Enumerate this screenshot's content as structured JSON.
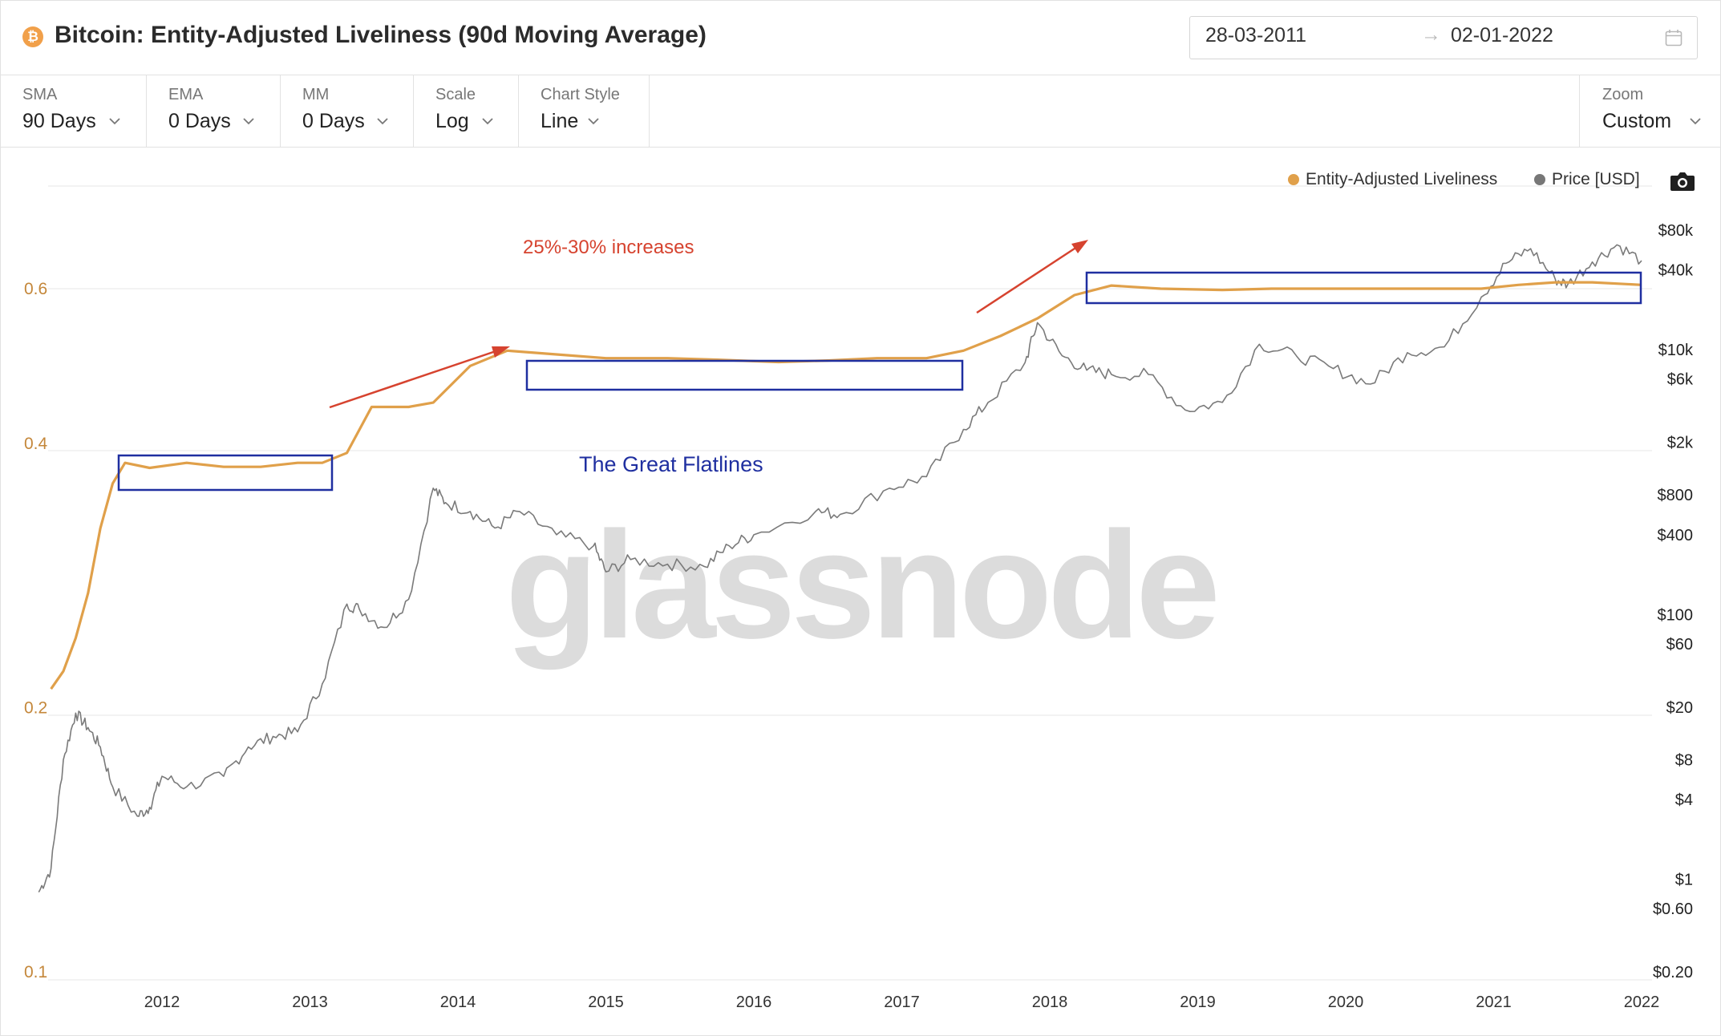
{
  "header": {
    "title": "Bitcoin: Entity-Adjusted Liveliness (90d Moving Average)",
    "coin_icon": "bitcoin-icon",
    "date_from": "28-03-2011",
    "date_arrow": "→",
    "date_to": "02-01-2022"
  },
  "toolbar": {
    "sma": {
      "label": "SMA",
      "value": "90 Days"
    },
    "ema": {
      "label": "EMA",
      "value": "0 Days"
    },
    "mm": {
      "label": "MM",
      "value": "0 Days"
    },
    "scale": {
      "label": "Scale",
      "value": "Log"
    },
    "chart_style": {
      "label": "Chart Style",
      "value": "Line"
    },
    "zoom": {
      "label": "Zoom",
      "value": "Custom"
    }
  },
  "legend": {
    "liveliness": "Entity-Adjusted Liveliness",
    "price": "Price [USD]"
  },
  "annotations": {
    "increases": "25%-30% increases",
    "flatlines": "The Great Flatlines"
  },
  "watermark": "glassnode",
  "colors": {
    "liveliness": "#e0a04a",
    "price": "#7a7a7a",
    "box": "#1f2fa0",
    "arrow": "#d6432f",
    "increases_text": "#d6432f",
    "flatlines_text": "#1f2fa0"
  },
  "chart_data": {
    "type": "line",
    "x_ticks": [
      "2012",
      "2013",
      "2014",
      "2015",
      "2016",
      "2017",
      "2018",
      "2019",
      "2020",
      "2021",
      "2022"
    ],
    "y_left_ticks": [
      "0.6",
      "0.4",
      "0.2",
      "0.1"
    ],
    "y_right_ticks": [
      "$80k",
      "$40k",
      "$10k",
      "$6k",
      "$2k",
      "$800",
      "$400",
      "$100",
      "$60",
      "$20",
      "$8",
      "$4",
      "$1",
      "$0.60",
      "$0.20"
    ],
    "y_left_scale": "log",
    "y_right_scale": "log",
    "y_left_range": [
      0.1,
      0.8
    ],
    "y_right_range": [
      0.2,
      80000
    ],
    "grid": true,
    "legend_position": "top-right",
    "series": [
      {
        "name": "Entity-Adjusted Liveliness",
        "axis": "left",
        "points": [
          [
            "2011-04",
            0.21
          ],
          [
            "2011-05",
            0.22
          ],
          [
            "2011-06",
            0.24
          ],
          [
            "2011-07",
            0.27
          ],
          [
            "2011-08",
            0.32
          ],
          [
            "2011-09",
            0.36
          ],
          [
            "2011-10",
            0.38
          ],
          [
            "2011-12",
            0.375
          ],
          [
            "2012-03",
            0.38
          ],
          [
            "2012-06",
            0.376
          ],
          [
            "2012-09",
            0.376
          ],
          [
            "2012-12",
            0.38
          ],
          [
            "2013-02",
            0.38
          ],
          [
            "2013-04",
            0.39
          ],
          [
            "2013-06",
            0.44
          ],
          [
            "2013-09",
            0.44
          ],
          [
            "2013-11",
            0.445
          ],
          [
            "2014-02",
            0.49
          ],
          [
            "2014-05",
            0.51
          ],
          [
            "2014-09",
            0.505
          ],
          [
            "2015-01",
            0.5
          ],
          [
            "2015-06",
            0.5
          ],
          [
            "2015-10",
            0.498
          ],
          [
            "2016-03",
            0.495
          ],
          [
            "2016-07",
            0.497
          ],
          [
            "2016-11",
            0.5
          ],
          [
            "2017-03",
            0.5
          ],
          [
            "2017-06",
            0.51
          ],
          [
            "2017-09",
            0.53
          ],
          [
            "2017-12",
            0.555
          ],
          [
            "2018-03",
            0.59
          ],
          [
            "2018-06",
            0.605
          ],
          [
            "2018-10",
            0.6
          ],
          [
            "2019-03",
            0.598
          ],
          [
            "2019-07",
            0.6
          ],
          [
            "2019-12",
            0.6
          ],
          [
            "2020-06",
            0.6
          ],
          [
            "2020-12",
            0.6
          ],
          [
            "2021-03",
            0.606
          ],
          [
            "2021-06",
            0.61
          ],
          [
            "2021-09",
            0.61
          ],
          [
            "2022-01",
            0.606
          ]
        ]
      },
      {
        "name": "Price [USD]",
        "axis": "right",
        "points": [
          [
            "2011-03",
            0.8
          ],
          [
            "2011-04",
            1.2
          ],
          [
            "2011-05",
            8
          ],
          [
            "2011-06",
            18
          ],
          [
            "2011-07",
            14
          ],
          [
            "2011-08",
            10
          ],
          [
            "2011-09",
            5
          ],
          [
            "2011-11",
            3
          ],
          [
            "2011-12",
            3.5
          ],
          [
            "2012-01",
            6
          ],
          [
            "2012-03",
            5
          ],
          [
            "2012-06",
            6
          ],
          [
            "2012-08",
            10
          ],
          [
            "2012-10",
            12
          ],
          [
            "2012-12",
            13
          ],
          [
            "2013-02",
            30
          ],
          [
            "2013-04",
            120
          ],
          [
            "2013-05",
            110
          ],
          [
            "2013-07",
            80
          ],
          [
            "2013-09",
            130
          ],
          [
            "2013-11",
            900
          ],
          [
            "2013-12",
            700
          ],
          [
            "2014-02",
            600
          ],
          [
            "2014-04",
            450
          ],
          [
            "2014-06",
            600
          ],
          [
            "2014-09",
            400
          ],
          [
            "2014-12",
            330
          ],
          [
            "2015-01",
            210
          ],
          [
            "2015-03",
            260
          ],
          [
            "2015-06",
            240
          ],
          [
            "2015-09",
            230
          ],
          [
            "2015-11",
            330
          ],
          [
            "2016-01",
            400
          ],
          [
            "2016-06",
            600
          ],
          [
            "2016-08",
            570
          ],
          [
            "2016-12",
            900
          ],
          [
            "2017-03",
            1100
          ],
          [
            "2017-06",
            2500
          ],
          [
            "2017-08",
            4000
          ],
          [
            "2017-11",
            8000
          ],
          [
            "2017-12",
            16000
          ],
          [
            "2018-02",
            9000
          ],
          [
            "2018-04",
            7000
          ],
          [
            "2018-06",
            6500
          ],
          [
            "2018-09",
            6500
          ],
          [
            "2018-12",
            3500
          ],
          [
            "2019-03",
            4000
          ],
          [
            "2019-06",
            11000
          ],
          [
            "2019-09",
            9000
          ],
          [
            "2019-12",
            7200
          ],
          [
            "2020-03",
            5500
          ],
          [
            "2020-06",
            9500
          ],
          [
            "2020-09",
            10500
          ],
          [
            "2020-12",
            25000
          ],
          [
            "2021-02",
            45000
          ],
          [
            "2021-04",
            58000
          ],
          [
            "2021-06",
            34000
          ],
          [
            "2021-07",
            31000
          ],
          [
            "2021-09",
            46000
          ],
          [
            "2021-11",
            62000
          ],
          [
            "2022-01",
            47000
          ]
        ]
      }
    ]
  }
}
